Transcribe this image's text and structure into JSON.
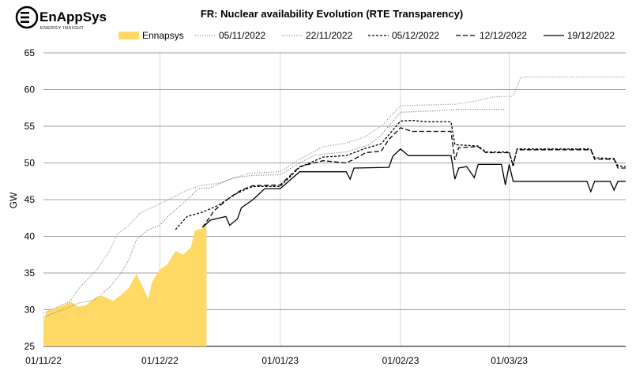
{
  "logo": {
    "brand": "EnAppSys",
    "tagline": "ENERGY INSIGHT"
  },
  "chart_data": {
    "type": "line",
    "title": "FR: Nuclear availability Evolution (RTE Transparency)",
    "xlabel": "",
    "ylabel": "GW",
    "ylim": [
      25,
      65
    ],
    "yticks": [
      25,
      30,
      35,
      40,
      45,
      50,
      55,
      60,
      65
    ],
    "xlim": [
      "2022-11-01",
      "2023-03-31"
    ],
    "xticks": [
      "01/11/22",
      "01/12/22",
      "01/01/23",
      "01/02/23",
      "01/03/23"
    ],
    "grid": "horizontal",
    "legend": "top",
    "series": [
      {
        "name": "Ennapsys",
        "style": "area",
        "color": "#ffd966",
        "points": [
          [
            "2022-11-01",
            28.7
          ],
          [
            "2022-11-02",
            29.8
          ],
          [
            "2022-11-04",
            30.2
          ],
          [
            "2022-11-06",
            30.6
          ],
          [
            "2022-11-08",
            31.1
          ],
          [
            "2022-11-10",
            30.4
          ],
          [
            "2022-11-12",
            30.6
          ],
          [
            "2022-11-14",
            31.5
          ],
          [
            "2022-11-16",
            31.9
          ],
          [
            "2022-11-19",
            31.2
          ],
          [
            "2022-11-21",
            32.0
          ],
          [
            "2022-11-23",
            33.0
          ],
          [
            "2022-11-25",
            34.9
          ],
          [
            "2022-11-28",
            31.5
          ],
          [
            "2022-11-29",
            33.8
          ],
          [
            "2022-12-01",
            35.5
          ],
          [
            "2022-12-03",
            36.2
          ],
          [
            "2022-12-05",
            38.0
          ],
          [
            "2022-12-07",
            37.5
          ],
          [
            "2022-12-09",
            38.5
          ],
          [
            "2022-12-10",
            40.8
          ],
          [
            "2022-12-12",
            41.1
          ],
          [
            "2022-12-13",
            41.4
          ]
        ]
      },
      {
        "name": "05/11/2022",
        "style": "dotted",
        "color": "#999999",
        "points": [
          [
            "2022-11-01",
            29.5
          ],
          [
            "2022-11-05",
            30.5
          ],
          [
            "2022-11-08",
            31.2
          ],
          [
            "2022-11-10",
            32.8
          ],
          [
            "2022-11-13",
            34.5
          ],
          [
            "2022-11-15",
            35.6
          ],
          [
            "2022-11-18",
            38.0
          ],
          [
            "2022-11-20",
            40.3
          ],
          [
            "2022-11-23",
            41.5
          ],
          [
            "2022-11-26",
            43.2
          ],
          [
            "2022-11-30",
            44.2
          ],
          [
            "2022-12-04",
            45.2
          ],
          [
            "2022-12-08",
            46.3
          ],
          [
            "2022-12-12",
            47.0
          ],
          [
            "2022-12-16",
            47.2
          ],
          [
            "2022-12-24",
            48.6
          ],
          [
            "2023-01-01",
            48.8
          ],
          [
            "2023-01-06",
            50.5
          ],
          [
            "2023-01-12",
            52.2
          ],
          [
            "2023-01-18",
            52.7
          ],
          [
            "2023-01-23",
            53.6
          ],
          [
            "2023-01-27",
            55.0
          ],
          [
            "2023-02-01",
            57.8
          ],
          [
            "2023-02-08",
            57.9
          ],
          [
            "2023-02-15",
            58.0
          ],
          [
            "2023-02-20",
            58.4
          ],
          [
            "2023-02-25",
            59.0
          ],
          [
            "2023-03-02",
            59.1
          ],
          [
            "2023-03-04",
            61.7
          ],
          [
            "2023-03-31",
            61.7
          ]
        ]
      },
      {
        "name": "22/11/2022",
        "style": "dotted",
        "color": "#888888",
        "points": [
          [
            "2022-11-01",
            29.0
          ],
          [
            "2022-11-06",
            30.0
          ],
          [
            "2022-11-10",
            30.9
          ],
          [
            "2022-11-14",
            31.3
          ],
          [
            "2022-11-18",
            33.0
          ],
          [
            "2022-11-21",
            35.0
          ],
          [
            "2022-11-23",
            36.8
          ],
          [
            "2022-11-25",
            39.6
          ],
          [
            "2022-11-28",
            40.9
          ],
          [
            "2022-12-01",
            41.5
          ],
          [
            "2022-12-03",
            42.7
          ],
          [
            "2022-12-07",
            44.5
          ],
          [
            "2022-12-11",
            46.5
          ],
          [
            "2022-12-14",
            46.6
          ],
          [
            "2022-12-20",
            48.0
          ],
          [
            "2022-12-25",
            48.3
          ],
          [
            "2023-01-01",
            48.4
          ],
          [
            "2023-01-06",
            50.0
          ],
          [
            "2023-01-10",
            51.1
          ],
          [
            "2023-01-18",
            51.5
          ],
          [
            "2023-01-24",
            52.5
          ],
          [
            "2023-01-27",
            53.8
          ],
          [
            "2023-02-01",
            56.9
          ],
          [
            "2023-02-10",
            57.1
          ],
          [
            "2023-02-15",
            57.3
          ],
          [
            "2023-02-28",
            57.3
          ]
        ]
      },
      {
        "name": "05/12/2022",
        "style": "shortdash",
        "color": "#000000",
        "points": [
          [
            "2022-12-05",
            40.9
          ],
          [
            "2022-12-08",
            42.7
          ],
          [
            "2022-12-12",
            43.3
          ],
          [
            "2022-12-16",
            44.2
          ],
          [
            "2022-12-20",
            45.6
          ],
          [
            "2022-12-23",
            46.4
          ],
          [
            "2022-12-25",
            46.8
          ],
          [
            "2023-01-01",
            46.8
          ],
          [
            "2023-01-06",
            49.4
          ],
          [
            "2023-01-12",
            50.8
          ],
          [
            "2023-01-18",
            51.0
          ],
          [
            "2023-01-23",
            52.0
          ],
          [
            "2023-01-27",
            52.6
          ],
          [
            "2023-02-01",
            55.7
          ],
          [
            "2023-02-04",
            55.8
          ],
          [
            "2023-02-08",
            55.6
          ],
          [
            "2023-02-14",
            55.6
          ],
          [
            "2023-02-15",
            52.5
          ],
          [
            "2023-02-21",
            52.3
          ],
          [
            "2023-02-23",
            51.5
          ],
          [
            "2023-03-01",
            51.5
          ],
          [
            "2023-03-02",
            49.5
          ],
          [
            "2023-03-03",
            51.9
          ],
          [
            "2023-03-22",
            51.9
          ],
          [
            "2023-03-23",
            50.7
          ],
          [
            "2023-03-28",
            50.6
          ],
          [
            "2023-03-29",
            49.6
          ],
          [
            "2023-03-31",
            49.5
          ]
        ]
      },
      {
        "name": "12/12/2022",
        "style": "longdash",
        "color": "#000000",
        "points": [
          [
            "2022-12-12",
            41.2
          ],
          [
            "2022-12-15",
            43.5
          ],
          [
            "2022-12-19",
            45.3
          ],
          [
            "2022-12-22",
            46.3
          ],
          [
            "2022-12-25",
            46.9
          ],
          [
            "2023-01-01",
            47.0
          ],
          [
            "2023-01-06",
            49.5
          ],
          [
            "2023-01-12",
            50.3
          ],
          [
            "2023-01-18",
            50.0
          ],
          [
            "2023-01-20",
            50.5
          ],
          [
            "2023-01-23",
            51.4
          ],
          [
            "2023-01-27",
            51.6
          ],
          [
            "2023-01-29",
            53.2
          ],
          [
            "2023-02-01",
            54.8
          ],
          [
            "2023-02-04",
            54.3
          ],
          [
            "2023-02-14",
            54.3
          ],
          [
            "2023-02-15",
            50.4
          ],
          [
            "2023-02-16",
            52.1
          ],
          [
            "2023-02-21",
            52.2
          ],
          [
            "2023-02-23",
            51.4
          ],
          [
            "2023-03-01",
            51.4
          ],
          [
            "2023-03-02",
            49.8
          ],
          [
            "2023-03-03",
            51.8
          ],
          [
            "2023-03-22",
            51.8
          ],
          [
            "2023-03-23",
            50.5
          ],
          [
            "2023-03-28",
            50.5
          ],
          [
            "2023-03-29",
            49.3
          ],
          [
            "2023-03-31",
            49.3
          ]
        ]
      },
      {
        "name": "19/12/2022",
        "style": "solid",
        "color": "#000000",
        "points": [
          [
            "2022-12-12",
            41.2
          ],
          [
            "2022-12-14",
            42.2
          ],
          [
            "2022-12-18",
            42.7
          ],
          [
            "2022-12-19",
            41.5
          ],
          [
            "2022-12-21",
            42.4
          ],
          [
            "2022-12-22",
            43.9
          ],
          [
            "2022-12-25",
            45.0
          ],
          [
            "2022-12-28",
            46.5
          ],
          [
            "2023-01-01",
            46.5
          ],
          [
            "2023-01-06",
            48.8
          ],
          [
            "2023-01-18",
            48.8
          ],
          [
            "2023-01-19",
            47.8
          ],
          [
            "2023-01-20",
            49.3
          ],
          [
            "2023-01-29",
            49.4
          ],
          [
            "2023-01-30",
            50.9
          ],
          [
            "2023-02-01",
            51.9
          ],
          [
            "2023-02-03",
            51.0
          ],
          [
            "2023-02-14",
            51.0
          ],
          [
            "2023-02-15",
            47.8
          ],
          [
            "2023-02-16",
            49.3
          ],
          [
            "2023-02-18",
            49.5
          ],
          [
            "2023-02-20",
            48.0
          ],
          [
            "2023-02-21",
            49.8
          ],
          [
            "2023-02-27",
            49.8
          ],
          [
            "2023-02-28",
            47.0
          ],
          [
            "2023-03-01",
            49.8
          ],
          [
            "2023-03-02",
            47.5
          ],
          [
            "2023-03-21",
            47.5
          ],
          [
            "2023-03-22",
            46.1
          ],
          [
            "2023-03-23",
            47.5
          ],
          [
            "2023-03-27",
            47.5
          ],
          [
            "2023-03-28",
            46.3
          ],
          [
            "2023-03-29",
            47.5
          ],
          [
            "2023-03-31",
            47.5
          ]
        ]
      }
    ]
  }
}
